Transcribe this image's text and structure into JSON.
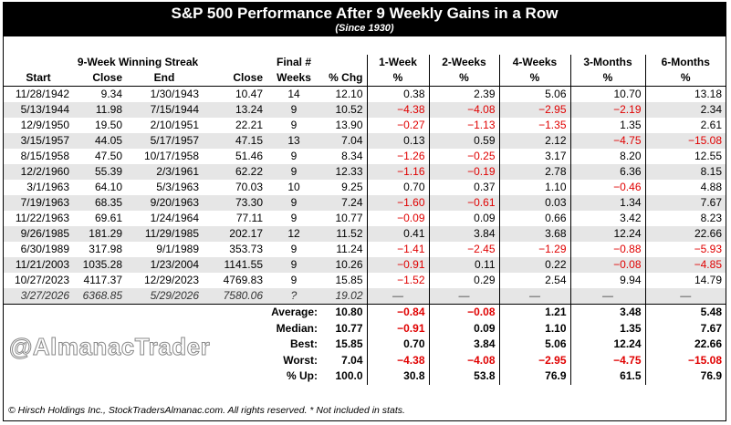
{
  "header": {
    "title": "S&P 500 Performance After 9 Weekly Gains in a Row",
    "subtitle": "(Since 1930)"
  },
  "table": {
    "top_headers": {
      "streak": "9-Week Winning Streak",
      "final": "Final #",
      "periods": [
        "1-Week",
        "2-Weeks",
        "4-Weeks",
        "3-Months",
        "6-Months"
      ]
    },
    "columns": [
      "Start",
      "Close",
      "End",
      "Close",
      "Weeks",
      "% Chg",
      "%",
      "%",
      "%",
      "%",
      "%"
    ],
    "rows": [
      [
        "11/28/1942",
        "9.34",
        "1/30/1943",
        "10.47",
        "14",
        "12.10",
        "0.38",
        "2.39",
        "5.06",
        "10.70",
        "13.18"
      ],
      [
        "5/13/1944",
        "11.98",
        "7/15/1944",
        "13.24",
        "9",
        "10.52",
        "−4.38",
        "−4.08",
        "−2.95",
        "−2.19",
        "2.34"
      ],
      [
        "12/9/1950",
        "19.50",
        "2/10/1951",
        "22.21",
        "9",
        "13.90",
        "−0.27",
        "−1.13",
        "−1.35",
        "1.35",
        "2.61"
      ],
      [
        "3/15/1957",
        "44.05",
        "5/17/1957",
        "47.15",
        "13",
        "7.04",
        "0.13",
        "0.59",
        "2.12",
        "−4.75",
        "−15.08"
      ],
      [
        "8/15/1958",
        "47.50",
        "10/17/1958",
        "51.46",
        "9",
        "8.34",
        "−1.26",
        "−0.25",
        "3.17",
        "8.20",
        "12.55"
      ],
      [
        "12/2/1960",
        "55.39",
        "2/3/1961",
        "62.22",
        "9",
        "12.33",
        "−1.16",
        "−0.19",
        "2.78",
        "6.36",
        "8.15"
      ],
      [
        "3/1/1963",
        "64.10",
        "5/3/1963",
        "70.03",
        "10",
        "9.25",
        "0.70",
        "0.37",
        "1.10",
        "−0.46",
        "4.88"
      ],
      [
        "7/19/1963",
        "68.35",
        "9/20/1963",
        "73.30",
        "9",
        "7.24",
        "−1.60",
        "−0.61",
        "0.03",
        "1.34",
        "7.67"
      ],
      [
        "11/22/1963",
        "69.61",
        "1/24/1964",
        "77.11",
        "9",
        "10.77",
        "−0.09",
        "0.09",
        "0.66",
        "3.42",
        "8.23"
      ],
      [
        "9/26/1985",
        "181.29",
        "11/29/1985",
        "202.17",
        "12",
        "11.52",
        "0.41",
        "3.84",
        "3.68",
        "12.24",
        "22.66"
      ],
      [
        "6/30/1989",
        "317.98",
        "9/1/1989",
        "353.73",
        "9",
        "11.24",
        "−1.41",
        "−2.45",
        "−1.29",
        "−0.88",
        "−5.93"
      ],
      [
        "11/21/2003",
        "1035.28",
        "1/23/2004",
        "1141.55",
        "9",
        "10.26",
        "−0.91",
        "0.11",
        "0.22",
        "−0.08",
        "−4.85"
      ],
      [
        "10/27/2023",
        "4117.37",
        "12/29/2023",
        "4769.83",
        "9",
        "15.85",
        "−1.52",
        "0.29",
        "2.54",
        "9.94",
        "14.79"
      ],
      [
        "3/27/2026",
        "6368.85",
        "5/29/2026",
        "7580.06",
        "?",
        "19.02",
        "—",
        "—",
        "—",
        "—",
        "—"
      ]
    ]
  },
  "summary": {
    "rows": [
      [
        "Average:",
        "10.80",
        "−0.84",
        "−0.08",
        "1.21",
        "3.48",
        "5.48"
      ],
      [
        "Median:",
        "10.77",
        "−0.91",
        "0.09",
        "1.10",
        "1.35",
        "7.67"
      ],
      [
        "Best:",
        "15.85",
        "0.70",
        "3.84",
        "5.06",
        "12.24",
        "22.66"
      ],
      [
        "Worst:",
        "7.04",
        "−4.38",
        "−4.08",
        "−2.95",
        "−4.75",
        "−15.08"
      ],
      [
        "% Up:",
        "100.0",
        "30.8",
        "53.8",
        "76.9",
        "61.5",
        "76.9"
      ]
    ]
  },
  "watermark": "@AlmanacTrader",
  "footer": "© Hirsch Holdings Inc., StockTradersAlmanac.com. All rights reserved. * Not included in stats."
}
